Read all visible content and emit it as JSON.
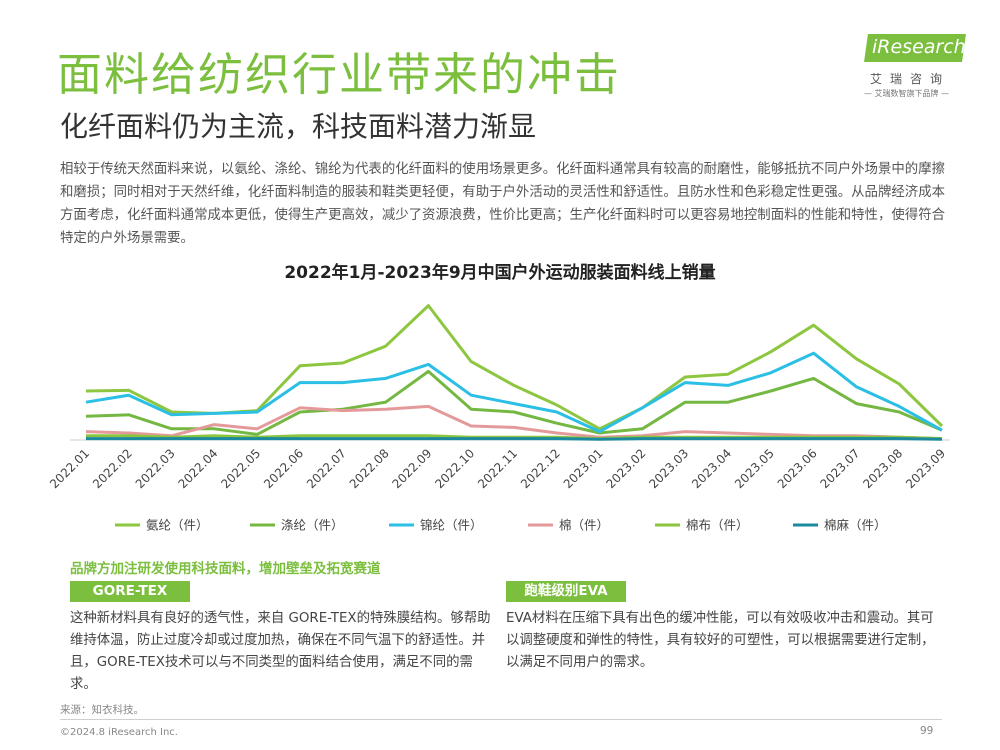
{
  "header": {
    "title": "面料给纺织行业带来的冲击",
    "subtitle": "化纤面料仍为主流，科技面料潜力渐显"
  },
  "logo": {
    "brand": "iResearch",
    "cn_name": "艾瑞咨询",
    "tagline": "— 艾瑞数智旗下品牌 —",
    "color": "#7cbf3f"
  },
  "intro": "相较于传统天然面料来说，以氨纶、涤纶、锦纶为代表的化纤面料的使用场景更多。化纤面料通常具有较高的耐磨性，能够抵抗不同户外场景中的摩擦和磨损；同时相对于天然纤维，化纤面料制造的服装和鞋类更轻便，有助于户外活动的灵活性和舒适性。且防水性和色彩稳定性更强。从品牌经济成本方面考虑，化纤面料通常成本更低，使得生产更高效，减少了资源浪费，性价比更高；生产化纤面料时可以更容易地控制面料的性能和特性，使得符合特定的户外场景需要。",
  "chart_data": {
    "type": "line",
    "title": "2022年1月-2023年9月中国户外运动服装面料线上销量",
    "categories": [
      "2022.01",
      "2022.02",
      "2022.03",
      "2022.04",
      "2022.05",
      "2022.06",
      "2022.07",
      "2022.08",
      "2022.09",
      "2022.10",
      "2022.11",
      "2022.12",
      "2023.01",
      "2023.02",
      "2023.03",
      "2023.04",
      "2023.05",
      "2023.06",
      "2023.07",
      "2023.08",
      "2023.09"
    ],
    "ylim": [
      0,
      100
    ],
    "grid": false,
    "yaxis_visible": false,
    "legend_position": "bottom",
    "series": [
      {
        "name": "氨纶（件）",
        "color": "#8dc63f",
        "values": [
          35,
          35.5,
          20,
          19,
          21,
          53,
          55,
          67,
          96,
          56,
          39,
          25,
          8,
          23,
          45,
          47,
          63,
          82,
          58,
          40,
          10
        ]
      },
      {
        "name": "涤纶（件）",
        "color": "#74b843",
        "values": [
          17,
          18,
          8,
          8,
          4,
          20,
          22,
          27,
          49,
          22,
          20,
          12,
          5,
          8,
          27,
          27,
          35,
          44,
          26,
          20,
          7
        ]
      },
      {
        "name": "锦纶（件）",
        "color": "#2bbfe5",
        "values": [
          27,
          32,
          18,
          19,
          20,
          41,
          41,
          44,
          54,
          32,
          26,
          20,
          6,
          23,
          41,
          39,
          48,
          62,
          38,
          24,
          7
        ]
      },
      {
        "name": "棉（件）",
        "color": "#e49a9a",
        "values": [
          6,
          5,
          3,
          11,
          8,
          23,
          21,
          22,
          24,
          10,
          9,
          5,
          2,
          3,
          6,
          5,
          4,
          3,
          3,
          2,
          1
        ]
      },
      {
        "name": "棉布（件）",
        "color": "#8bc53f",
        "values": [
          3,
          3,
          2,
          3,
          2,
          3,
          3,
          3,
          3,
          2,
          2,
          2,
          1,
          2,
          2,
          2,
          2,
          2,
          2,
          2,
          1
        ]
      },
      {
        "name": "棉麻（件）",
        "color": "#1b8a9e",
        "values": [
          1,
          1,
          1,
          1,
          1,
          1,
          1,
          1,
          1,
          1,
          1,
          1,
          0.5,
          1,
          1,
          1,
          1,
          1,
          1,
          1,
          0.5
        ]
      }
    ]
  },
  "sections": {
    "heading": "品牌方加注研发使用科技面料，增加壁垒及拓宽赛道",
    "left": {
      "tag": "GORE-TEX",
      "text": "这种新材料具有良好的透气性，来自 GORE-TEX的特殊膜结构。够帮助维持体温，防止过度冷却或过度加热，确保在不同气温下的舒适性。并且，GORE-TEX技术可以与不同类型的面料结合使用，满足不同的需求。"
    },
    "right": {
      "tag": "跑鞋级别EVA",
      "text": "EVA材料在压缩下具有出色的缓冲性能，可以有效吸收冲击和震动。其可以调整硬度和弹性的特性，具有较好的可塑性，可以根据需要进行定制，以满足不同用户的需求。"
    }
  },
  "footer": {
    "source": "来源：知衣科技。",
    "copyright": "©2024.8 iResearch Inc.",
    "page": "99"
  }
}
